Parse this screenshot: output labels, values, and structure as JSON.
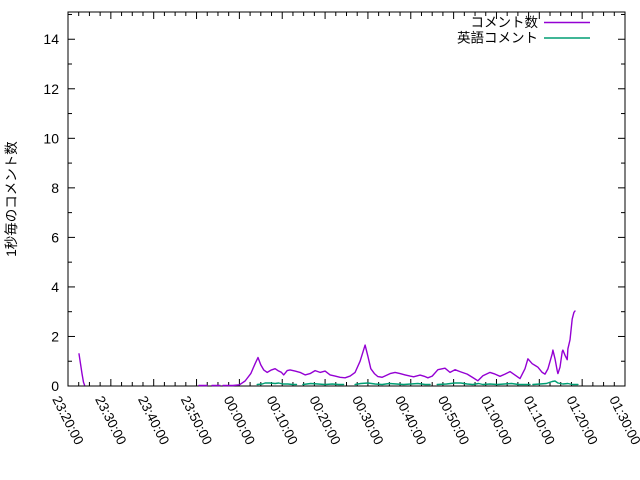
{
  "chart_data": {
    "type": "line",
    "title": "",
    "ylabel": "1秒毎のコメント数",
    "background_color": "#ffffff",
    "axis_color": "#000000",
    "grid": false,
    "legend_position": "top-right-inside",
    "x_axis": {
      "tick_labels": [
        "23:20:00",
        "23:30:00",
        "23:40:00",
        "23:50:00",
        "00:00:00",
        "00:10:00",
        "00:20:00",
        "00:30:00",
        "00:40:00",
        "00:50:00",
        "01:00:00",
        "01:10:00",
        "01:20:00",
        "01:30:00"
      ],
      "tick_seconds": [
        0,
        600,
        1200,
        1800,
        2400,
        3000,
        3600,
        4200,
        4800,
        5400,
        6000,
        6600,
        7200,
        7800
      ],
      "range_seconds": [
        0,
        7800
      ],
      "minor_tick_seconds": 150
    },
    "y_axis": {
      "ticks": [
        0,
        2,
        4,
        6,
        8,
        10,
        12,
        14
      ],
      "range": [
        0,
        15.1
      ],
      "minor_step": 1
    },
    "legend": [
      {
        "label": "コメント数",
        "color": "#9400d3"
      },
      {
        "label": "英語コメント",
        "color": "#009e73"
      }
    ],
    "series": [
      {
        "name": "コメント数",
        "color": "#9400d3",
        "segments": [
          [
            [
              154,
              1.3
            ],
            [
              175,
              0.9
            ],
            [
              196,
              0.5
            ],
            [
              217,
              0.15
            ],
            [
              231,
              0.04
            ]
          ],
          [
            [
              1834,
              0.02
            ],
            [
              1946,
              0.02
            ]
          ],
          [
            [
              2016,
              0.02
            ],
            [
              2128,
              0.02
            ]
          ],
          [
            [
              2170,
              0.02
            ],
            [
              2310,
              0.02
            ],
            [
              2400,
              0.05
            ],
            [
              2480,
              0.2
            ],
            [
              2560,
              0.5
            ],
            [
              2620,
              0.9
            ],
            [
              2660,
              1.15
            ],
            [
              2700,
              0.85
            ],
            [
              2740,
              0.65
            ],
            [
              2790,
              0.55
            ],
            [
              2850,
              0.65
            ],
            [
              2900,
              0.7
            ],
            [
              2940,
              0.62
            ],
            [
              2990,
              0.55
            ],
            [
              3020,
              0.45
            ],
            [
              3070,
              0.62
            ],
            [
              3110,
              0.65
            ],
            [
              3180,
              0.6
            ],
            [
              3250,
              0.55
            ],
            [
              3320,
              0.45
            ],
            [
              3390,
              0.5
            ],
            [
              3460,
              0.62
            ],
            [
              3530,
              0.55
            ],
            [
              3600,
              0.6
            ],
            [
              3670,
              0.45
            ],
            [
              3740,
              0.4
            ],
            [
              3810,
              0.35
            ],
            [
              3880,
              0.33
            ],
            [
              3950,
              0.4
            ],
            [
              4020,
              0.55
            ],
            [
              4090,
              1.0
            ],
            [
              4160,
              1.65
            ],
            [
              4200,
              1.2
            ],
            [
              4240,
              0.7
            ],
            [
              4290,
              0.5
            ],
            [
              4340,
              0.38
            ],
            [
              4400,
              0.35
            ],
            [
              4450,
              0.42
            ],
            [
              4510,
              0.5
            ],
            [
              4580,
              0.55
            ],
            [
              4650,
              0.5
            ],
            [
              4720,
              0.45
            ],
            [
              4790,
              0.4
            ],
            [
              4840,
              0.37
            ],
            [
              4930,
              0.44
            ],
            [
              5000,
              0.38
            ],
            [
              5040,
              0.33
            ],
            [
              5100,
              0.4
            ],
            [
              5180,
              0.66
            ],
            [
              5280,
              0.72
            ],
            [
              5350,
              0.55
            ],
            [
              5420,
              0.66
            ],
            [
              5490,
              0.58
            ],
            [
              5590,
              0.48
            ],
            [
              5670,
              0.34
            ],
            [
              5740,
              0.21
            ],
            [
              5810,
              0.41
            ],
            [
              5910,
              0.55
            ],
            [
              5980,
              0.48
            ],
            [
              6050,
              0.39
            ],
            [
              6120,
              0.48
            ],
            [
              6190,
              0.58
            ],
            [
              6260,
              0.44
            ],
            [
              6330,
              0.3
            ],
            [
              6400,
              0.7
            ],
            [
              6440,
              1.1
            ],
            [
              6500,
              0.9
            ],
            [
              6540,
              0.83
            ],
            [
              6580,
              0.76
            ],
            [
              6640,
              0.55
            ],
            [
              6680,
              0.48
            ],
            [
              6720,
              0.69
            ],
            [
              6780,
              1.3
            ],
            [
              6790,
              1.45
            ],
            [
              6820,
              1.1
            ],
            [
              6850,
              0.62
            ],
            [
              6860,
              0.5
            ],
            [
              6890,
              0.76
            ],
            [
              6920,
              1.38
            ],
            [
              6930,
              1.45
            ],
            [
              6960,
              1.24
            ],
            [
              6990,
              1.06
            ],
            [
              7000,
              1.5
            ],
            [
              7030,
              1.86
            ],
            [
              7060,
              2.7
            ],
            [
              7085,
              2.97
            ],
            [
              7100,
              3.03
            ]
          ]
        ]
      },
      {
        "name": "英語コメント",
        "color": "#009e73",
        "segments": [
          [
            [
              2650,
              0.06
            ],
            [
              2720,
              0.08
            ],
            [
              2760,
              0.12
            ],
            [
              2830,
              0.12
            ],
            [
              2900,
              0.1
            ],
            [
              2950,
              0.12
            ],
            [
              3010,
              0.08
            ],
            [
              3080,
              0.08
            ],
            [
              3150,
              0.06
            ],
            [
              3200,
              0.06
            ]
          ],
          [
            [
              3290,
              0.06
            ],
            [
              3400,
              0.1
            ],
            [
              3500,
              0.08
            ],
            [
              3600,
              0.06
            ],
            [
              3700,
              0.08
            ],
            [
              3790,
              0.06
            ],
            [
              3860,
              0.06
            ]
          ],
          [
            [
              4020,
              0.06
            ],
            [
              4100,
              0.1
            ],
            [
              4200,
              0.12
            ],
            [
              4300,
              0.08
            ],
            [
              4400,
              0.06
            ],
            [
              4500,
              0.1
            ],
            [
              4600,
              0.08
            ],
            [
              4700,
              0.06
            ],
            [
              4800,
              0.08
            ],
            [
              4900,
              0.1
            ],
            [
              5000,
              0.06
            ],
            [
              5070,
              0.06
            ]
          ],
          [
            [
              5170,
              0.06
            ],
            [
              5300,
              0.08
            ],
            [
              5420,
              0.12
            ],
            [
              5500,
              0.12
            ],
            [
              5590,
              0.08
            ],
            [
              5670,
              0.06
            ],
            [
              5750,
              0.1
            ],
            [
              5810,
              0.06
            ],
            [
              5910,
              0.08
            ],
            [
              6010,
              0.06
            ],
            [
              6110,
              0.08
            ],
            [
              6210,
              0.1
            ],
            [
              6310,
              0.06
            ],
            [
              6400,
              0.06
            ],
            [
              6470,
              0.06
            ]
          ],
          [
            [
              6510,
              0.06
            ],
            [
              6610,
              0.08
            ],
            [
              6700,
              0.1
            ],
            [
              6780,
              0.18
            ],
            [
              6820,
              0.2
            ],
            [
              6860,
              0.12
            ],
            [
              6930,
              0.08
            ],
            [
              7000,
              0.1
            ],
            [
              7060,
              0.06
            ],
            [
              7140,
              0.06
            ]
          ]
        ]
      }
    ]
  }
}
